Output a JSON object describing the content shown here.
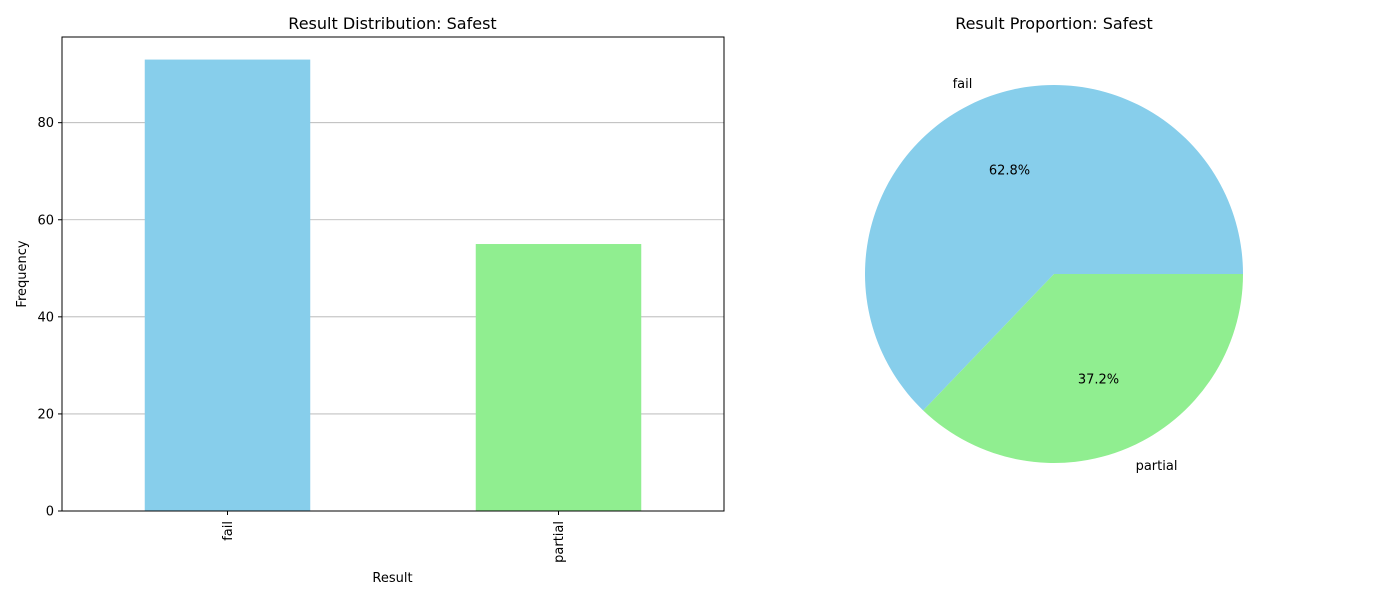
{
  "chart_data": [
    {
      "type": "bar",
      "title": "Result Distribution: Safest",
      "xlabel": "Result",
      "ylabel": "Frequency",
      "categories": [
        "fail",
        "partial"
      ],
      "values": [
        93,
        55
      ],
      "colors": [
        "#87ceeb",
        "#90ee90"
      ],
      "ylim": [
        0,
        97.65
      ],
      "yticks": [
        0,
        20,
        40,
        60,
        80
      ],
      "ytick_labels": [
        "0",
        "20",
        "40",
        "60",
        "80"
      ],
      "grid": "y-axis"
    },
    {
      "type": "pie",
      "title": "Result Proportion: Safest",
      "labels": [
        "fail",
        "partial"
      ],
      "values": [
        93,
        55
      ],
      "percent_labels": [
        "62.8%",
        "37.2%"
      ],
      "colors": [
        "#87ceeb",
        "#90ee90"
      ]
    }
  ]
}
